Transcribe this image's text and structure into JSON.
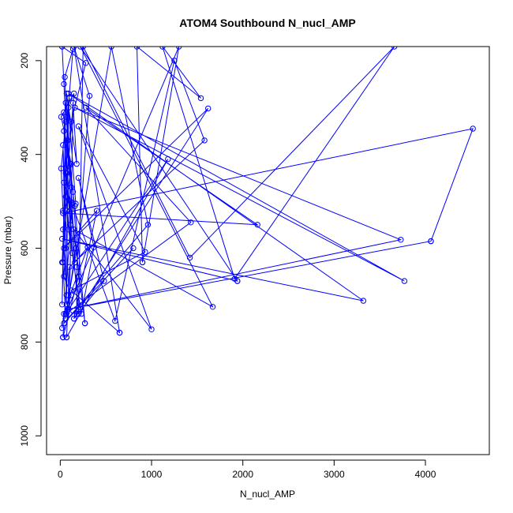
{
  "chart_data": {
    "type": "line",
    "title": "ATOM4 Southbound N_nucl_AMP",
    "xlabel": "N_nucl_AMP",
    "ylabel": "Pressure (mbar)",
    "xlim": [
      -150,
      4700
    ],
    "ylim": [
      1040,
      170
    ],
    "y_reversed": true,
    "x_ticks": [
      0,
      1000,
      2000,
      3000,
      4000
    ],
    "y_ticks": [
      200,
      400,
      600,
      800,
      1000
    ],
    "grid": false,
    "series": [
      {
        "color": "#0000ff",
        "marker": "open-circle",
        "points": [
          [
            20,
            770
          ],
          [
            40,
            740
          ],
          [
            120,
            700
          ],
          [
            40,
            660
          ],
          [
            60,
            600
          ],
          [
            30,
            520
          ],
          [
            10,
            430
          ],
          [
            60,
            330
          ],
          [
            40,
            250
          ],
          [
            20,
            170
          ],
          [
            20,
            170
          ],
          [
            280,
            205
          ],
          [
            120,
            330
          ],
          [
            40,
            460
          ],
          [
            600,
            755
          ],
          [
            1250,
            200
          ],
          [
            1580,
            370
          ],
          [
            100,
            640
          ],
          [
            70,
            790
          ],
          [
            70,
            790
          ],
          [
            1180,
            410
          ],
          [
            60,
            740
          ],
          [
            1430,
            545
          ],
          [
            280,
            300
          ],
          [
            2160,
            550
          ],
          [
            30,
            525
          ],
          [
            4520,
            345
          ],
          [
            4060,
            585
          ],
          [
            4060,
            585
          ],
          [
            90,
            730
          ],
          [
            3730,
            582
          ],
          [
            160,
            300
          ],
          [
            3770,
            670
          ],
          [
            90,
            270
          ],
          [
            3320,
            712
          ],
          [
            20,
            580
          ],
          [
            1940,
            670
          ],
          [
            1940,
            670
          ],
          [
            220,
            170
          ],
          [
            1670,
            725
          ],
          [
            150,
            560
          ],
          [
            1000,
            773
          ],
          [
            200,
            340
          ],
          [
            930,
            608
          ],
          [
            120,
            690
          ],
          [
            650,
            780
          ],
          [
            650,
            780
          ],
          [
            150,
            170
          ],
          [
            320,
            275
          ],
          [
            180,
            640
          ],
          [
            180,
            740
          ],
          [
            1620,
            302
          ],
          [
            40,
            600
          ],
          [
            400,
            520
          ],
          [
            150,
            750
          ],
          [
            150,
            750
          ],
          [
            480,
            670
          ],
          [
            200,
            450
          ],
          [
            370,
            598
          ],
          [
            230,
            740
          ],
          [
            90,
            560
          ],
          [
            40,
            350
          ],
          [
            160,
            510
          ],
          [
            270,
            760
          ],
          [
            270,
            760
          ],
          [
            110,
            500
          ],
          [
            70,
            270
          ],
          [
            180,
            420
          ],
          [
            140,
            290
          ],
          [
            100,
            740
          ],
          [
            30,
            380
          ],
          [
            70,
            720
          ],
          [
            300,
            598
          ],
          [
            300,
            598
          ],
          [
            160,
            630
          ],
          [
            120,
            470
          ],
          [
            60,
            290
          ],
          [
            20,
            720
          ],
          [
            60,
            430
          ],
          [
            40,
            310
          ],
          [
            110,
            550
          ],
          [
            30,
            790
          ],
          [
            30,
            790
          ],
          [
            200,
            660
          ],
          [
            140,
            480
          ],
          [
            80,
            370
          ],
          [
            50,
            235
          ],
          [
            140,
            175
          ],
          [
            80,
            320
          ],
          [
            30,
            630
          ],
          [
            60,
            750
          ],
          [
            60,
            750
          ],
          [
            170,
            600
          ],
          [
            60,
            440
          ],
          [
            100,
            280
          ],
          [
            20,
            630
          ],
          [
            70,
            520
          ],
          [
            170,
            505
          ],
          [
            90,
            300
          ],
          [
            70,
            700
          ],
          [
            70,
            700
          ],
          [
            30,
            560
          ],
          [
            120,
            420
          ],
          [
            10,
            320
          ],
          [
            150,
            270
          ],
          [
            60,
            490
          ],
          [
            130,
            610
          ],
          [
            70,
            440
          ],
          [
            200,
            740
          ],
          [
            200,
            740
          ],
          [
            250,
            170
          ],
          [
            1420,
            620
          ],
          [
            3660,
            170
          ],
          [
            1910,
            665
          ],
          [
            1120,
            170
          ],
          [
            1540,
            280
          ],
          [
            840,
            170
          ],
          [
            900,
            630
          ],
          [
            900,
            630
          ],
          [
            1300,
            170
          ],
          [
            60,
            740
          ],
          [
            560,
            170
          ],
          [
            960,
            550
          ],
          [
            40,
            760
          ],
          [
            800,
            600
          ]
        ]
      }
    ]
  }
}
